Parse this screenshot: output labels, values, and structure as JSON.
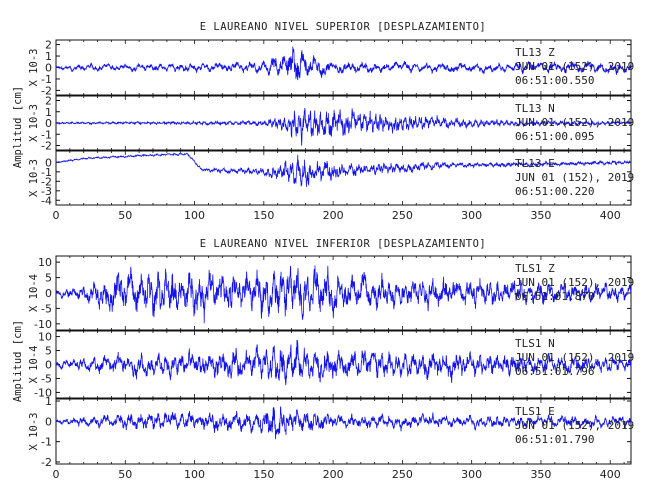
{
  "chart_data": [
    {
      "type": "line",
      "title": "E LAUREANO NIVEL SUPERIOR [DESPLAZAMIENTO]",
      "ylabel": "Amplitud [cm]",
      "xlim": [
        0,
        415
      ],
      "xticks": [
        0,
        50,
        100,
        150,
        200,
        250,
        300,
        350,
        400
      ],
      "traces": [
        {
          "station": "TL13",
          "component": "Z",
          "date": "JUN 01 (152), 2019",
          "time": "06:51:00.550",
          "scale": "X 10-3",
          "ylim": [
            -2.4,
            2.4
          ],
          "yticks": [
            -2,
            -1,
            0,
            1,
            2
          ],
          "envelope": [
            [
              0,
              0.15
            ],
            [
              20,
              0.35
            ],
            [
              60,
              0.4
            ],
            [
              120,
              0.45
            ],
            [
              150,
              0.6
            ],
            [
              160,
              1.1
            ],
            [
              168,
              1.6
            ],
            [
              175,
              2.2
            ],
            [
              182,
              1.3
            ],
            [
              200,
              0.6
            ],
            [
              260,
              0.45
            ],
            [
              330,
              0.45
            ],
            [
              360,
              0.6
            ],
            [
              400,
              0.55
            ],
            [
              415,
              0.5
            ]
          ],
          "period": 9,
          "seed": 11,
          "mean_shift": []
        },
        {
          "station": "TL13",
          "component": "N",
          "date": "JUN 01 (152), 2019",
          "time": "06:51:00.095",
          "scale": "X 10-3",
          "ylim": [
            -2.4,
            2.4
          ],
          "yticks": [
            -2,
            -1,
            0,
            1,
            2
          ],
          "envelope": [
            [
              0,
              0.1
            ],
            [
              100,
              0.15
            ],
            [
              150,
              0.3
            ],
            [
              160,
              0.6
            ],
            [
              170,
              1.2
            ],
            [
              177,
              1.9
            ],
            [
              185,
              1.6
            ],
            [
              210,
              1.2
            ],
            [
              240,
              0.9
            ],
            [
              280,
              0.6
            ],
            [
              320,
              0.3
            ],
            [
              415,
              0.15
            ]
          ],
          "period": 4,
          "seed": 23,
          "mean_shift": []
        },
        {
          "station": "TL13",
          "component": "E",
          "date": "JUN 01 (152), 2019",
          "time": "06:51:00.220",
          "scale": "X 10-3",
          "ylim": [
            -4.5,
            1.2
          ],
          "yticks": [
            -4,
            -3,
            -2,
            -1,
            0
          ],
          "envelope": [
            [
              0,
              0.1
            ],
            [
              100,
              0.15
            ],
            [
              150,
              0.5
            ],
            [
              165,
              1.2
            ],
            [
              175,
              2.2
            ],
            [
              185,
              1.5
            ],
            [
              210,
              0.8
            ],
            [
              260,
              0.6
            ],
            [
              290,
              0.3
            ],
            [
              415,
              0.2
            ]
          ],
          "period": 5,
          "seed": 37,
          "mean_shift": [
            [
              0,
              0.0
            ],
            [
              20,
              0.4
            ],
            [
              60,
              0.7
            ],
            [
              95,
              0.9
            ],
            [
              105,
              -0.8
            ],
            [
              150,
              -1.0
            ],
            [
              200,
              -0.9
            ],
            [
              260,
              -0.5
            ],
            [
              290,
              -0.3
            ],
            [
              350,
              -0.2
            ],
            [
              415,
              0.0
            ]
          ]
        }
      ]
    },
    {
      "type": "line",
      "title": "E LAUREANO NIVEL INFERIOR [DESPLAZAMIENTO]",
      "ylabel": "Amplitud [cm]",
      "xlim": [
        0,
        415
      ],
      "xticks": [
        0,
        50,
        100,
        150,
        200,
        250,
        300,
        350,
        400
      ],
      "traces": [
        {
          "station": "TLS1",
          "component": "Z",
          "date": "JUN 01 (152), 2019",
          "time": "06:51:01.870",
          "scale": "X 10-4",
          "ylim": [
            -12,
            12
          ],
          "yticks": [
            -10,
            -5,
            0,
            5,
            10
          ],
          "envelope": [
            [
              0,
              1
            ],
            [
              20,
              3
            ],
            [
              40,
              7
            ],
            [
              75,
              9
            ],
            [
              120,
              7
            ],
            [
              160,
              8
            ],
            [
              175,
              10
            ],
            [
              220,
              6
            ],
            [
              300,
              5
            ],
            [
              360,
              4
            ],
            [
              415,
              3
            ]
          ],
          "period": 7,
          "seed": 51,
          "mean_shift": []
        },
        {
          "station": "TLS1",
          "component": "N",
          "date": "JUN 01 (152), 2019",
          "time": "06:51:01.796",
          "scale": "X 10-4",
          "ylim": [
            -12,
            12
          ],
          "yticks": [
            -10,
            -5,
            0,
            5,
            10
          ],
          "envelope": [
            [
              0,
              1.5
            ],
            [
              40,
              4
            ],
            [
              100,
              5
            ],
            [
              150,
              7
            ],
            [
              165,
              10
            ],
            [
              180,
              7
            ],
            [
              220,
              6
            ],
            [
              300,
              5
            ],
            [
              360,
              4
            ],
            [
              415,
              3
            ]
          ],
          "period": 7,
          "seed": 67,
          "mean_shift": []
        },
        {
          "station": "TLS1",
          "component": "E",
          "date": "JUN 01 (152), 2019",
          "time": "06:51:01.790",
          "scale": "X 10-3",
          "ylim": [
            -2.1,
            1.1
          ],
          "yticks": [
            -2,
            -1,
            0,
            1
          ],
          "envelope": [
            [
              0,
              0.1
            ],
            [
              20,
              0.3
            ],
            [
              60,
              0.5
            ],
            [
              100,
              0.5
            ],
            [
              150,
              0.6
            ],
            [
              158,
              1.2
            ],
            [
              165,
              0.8
            ],
            [
              200,
              0.4
            ],
            [
              300,
              0.35
            ],
            [
              415,
              0.3
            ]
          ],
          "period": 7,
          "seed": 79,
          "mean_shift": []
        }
      ]
    }
  ]
}
